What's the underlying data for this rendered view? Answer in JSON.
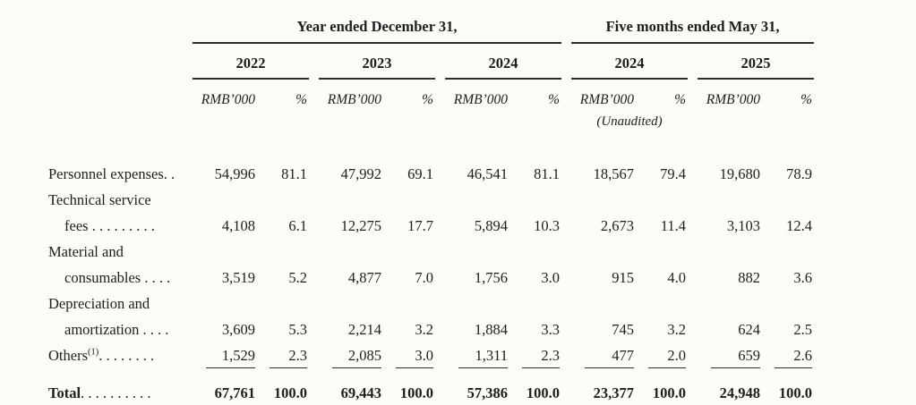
{
  "page": {
    "background": "#fcfcfb",
    "text_color": "#1e1e1e",
    "rule_color": "#2d2d2d"
  },
  "table": {
    "col_groups": [
      {
        "title": "Year ended December 31,",
        "years": [
          "2022",
          "2023",
          "2024"
        ]
      },
      {
        "title": "Five months ended May 31,",
        "years": [
          "2024",
          "2025"
        ]
      }
    ],
    "units": {
      "amount": "RMB’000",
      "percent": "%"
    },
    "unaudited_note": "(Unaudited)",
    "rows": [
      {
        "label": "Personnel expenses",
        "leader": ". .",
        "values": [
          "54,996",
          "81.1",
          "47,992",
          "69.1",
          "46,541",
          "81.1",
          "18,567",
          "79.4",
          "19,680",
          "78.9"
        ]
      },
      {
        "label": "Technical service",
        "values": []
      },
      {
        "label": "fees",
        "indent": true,
        "leader": " . . . . . . . . .",
        "values": [
          "4,108",
          "6.1",
          "12,275",
          "17.7",
          "5,894",
          "10.3",
          "2,673",
          "11.4",
          "3,103",
          "12.4"
        ]
      },
      {
        "label": "Material and",
        "values": []
      },
      {
        "label": "consumables",
        "indent": true,
        "leader": " . . . .",
        "values": [
          "3,519",
          "5.2",
          "4,877",
          "7.0",
          "1,756",
          "3.0",
          "915",
          "4.0",
          "882",
          "3.6"
        ]
      },
      {
        "label": "Depreciation and",
        "values": []
      },
      {
        "label": "amortization",
        "indent": true,
        "leader": " . . . .",
        "values": [
          "3,609",
          "5.3",
          "2,214",
          "3.2",
          "1,884",
          "3.3",
          "745",
          "3.2",
          "624",
          "2.5"
        ]
      },
      {
        "label": "Others",
        "sup": "(1)",
        "leader": ". . . . . . . .",
        "rule": "single",
        "values": [
          "1,529",
          "2.3",
          "2,085",
          "3.0",
          "1,311",
          "2.3",
          "477",
          "2.0",
          "659",
          "2.6"
        ]
      },
      {
        "label": "Total",
        "bold": true,
        "leader": ". . . . . . . . . .",
        "rule": "double",
        "spacer_before": true,
        "values": [
          "67,761",
          "100.0",
          "69,443",
          "100.0",
          "57,386",
          "100.0",
          "23,377",
          "100.0",
          "24,948",
          "100.0"
        ]
      }
    ]
  }
}
